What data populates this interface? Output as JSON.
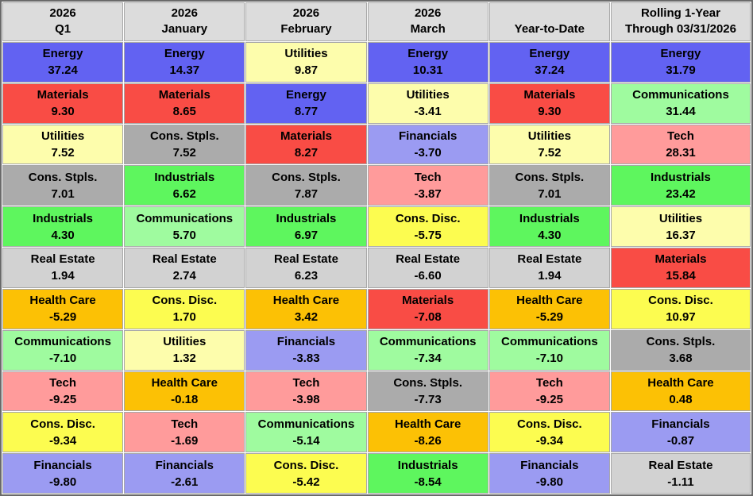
{
  "chart_data": {
    "type": "table",
    "title": "Sector returns quilt table (%), 2026 periods",
    "header_bg": "#dcdcdc",
    "grid_line_color": "#a8a8a8",
    "outer_border_color": "#6a6a6a",
    "sector_colors": {
      "Energy": "#6262f2",
      "Materials": "#f94c45",
      "Utilities": "#fdfdac",
      "Cons. Stpls.": "#ababab",
      "Industrials": "#5ef65e",
      "Real Estate": "#d2d2d2",
      "Health Care": "#fcc105",
      "Communications": "#9ffb9f",
      "Tech": "#ff9b9b",
      "Cons. Disc.": "#fcfc50",
      "Financials": "#9b9bf2"
    },
    "columns": [
      {
        "header_line1": "2026",
        "header_line2": "Q1",
        "cells": [
          {
            "sector": "Energy",
            "value": "37.24"
          },
          {
            "sector": "Materials",
            "value": "9.30"
          },
          {
            "sector": "Utilities",
            "value": "7.52"
          },
          {
            "sector": "Cons. Stpls.",
            "value": "7.01"
          },
          {
            "sector": "Industrials",
            "value": "4.30"
          },
          {
            "sector": "Real Estate",
            "value": "1.94"
          },
          {
            "sector": "Health Care",
            "value": "-5.29"
          },
          {
            "sector": "Communications",
            "value": "-7.10"
          },
          {
            "sector": "Tech",
            "value": "-9.25"
          },
          {
            "sector": "Cons. Disc.",
            "value": "-9.34"
          },
          {
            "sector": "Financials",
            "value": "-9.80"
          }
        ]
      },
      {
        "header_line1": "2026",
        "header_line2": "January",
        "cells": [
          {
            "sector": "Energy",
            "value": "14.37"
          },
          {
            "sector": "Materials",
            "value": "8.65"
          },
          {
            "sector": "Cons. Stpls.",
            "value": "7.52"
          },
          {
            "sector": "Industrials",
            "value": "6.62"
          },
          {
            "sector": "Communications",
            "value": "5.70"
          },
          {
            "sector": "Real Estate",
            "value": "2.74"
          },
          {
            "sector": "Cons. Disc.",
            "value": "1.70"
          },
          {
            "sector": "Utilities",
            "value": "1.32"
          },
          {
            "sector": "Health Care",
            "value": "-0.18"
          },
          {
            "sector": "Tech",
            "value": "-1.69"
          },
          {
            "sector": "Financials",
            "value": "-2.61"
          }
        ]
      },
      {
        "header_line1": "2026",
        "header_line2": "February",
        "cells": [
          {
            "sector": "Utilities",
            "value": "9.87"
          },
          {
            "sector": "Energy",
            "value": "8.77"
          },
          {
            "sector": "Materials",
            "value": "8.27"
          },
          {
            "sector": "Cons. Stpls.",
            "value": "7.87"
          },
          {
            "sector": "Industrials",
            "value": "6.97"
          },
          {
            "sector": "Real Estate",
            "value": "6.23"
          },
          {
            "sector": "Health Care",
            "value": "3.42"
          },
          {
            "sector": "Financials",
            "value": "-3.83"
          },
          {
            "sector": "Tech",
            "value": "-3.98"
          },
          {
            "sector": "Communications",
            "value": "-5.14"
          },
          {
            "sector": "Cons. Disc.",
            "value": "-5.42"
          }
        ]
      },
      {
        "header_line1": "2026",
        "header_line2": "March",
        "cells": [
          {
            "sector": "Energy",
            "value": "10.31"
          },
          {
            "sector": "Utilities",
            "value": "-3.41"
          },
          {
            "sector": "Financials",
            "value": "-3.70"
          },
          {
            "sector": "Tech",
            "value": "-3.87"
          },
          {
            "sector": "Cons. Disc.",
            "value": "-5.75"
          },
          {
            "sector": "Real Estate",
            "value": "-6.60"
          },
          {
            "sector": "Materials",
            "value": "-7.08"
          },
          {
            "sector": "Communications",
            "value": "-7.34"
          },
          {
            "sector": "Cons. Stpls.",
            "value": "-7.73"
          },
          {
            "sector": "Health Care",
            "value": "-8.26"
          },
          {
            "sector": "Industrials",
            "value": "-8.54"
          }
        ]
      },
      {
        "header_line1": "",
        "header_line2": "Year-to-Date",
        "cells": [
          {
            "sector": "Energy",
            "value": "37.24"
          },
          {
            "sector": "Materials",
            "value": "9.30"
          },
          {
            "sector": "Utilities",
            "value": "7.52"
          },
          {
            "sector": "Cons. Stpls.",
            "value": "7.01"
          },
          {
            "sector": "Industrials",
            "value": "4.30"
          },
          {
            "sector": "Real Estate",
            "value": "1.94"
          },
          {
            "sector": "Health Care",
            "value": "-5.29"
          },
          {
            "sector": "Communications",
            "value": "-7.10"
          },
          {
            "sector": "Tech",
            "value": "-9.25"
          },
          {
            "sector": "Cons. Disc.",
            "value": "-9.34"
          },
          {
            "sector": "Financials",
            "value": "-9.80"
          }
        ]
      },
      {
        "header_line1": "Rolling 1-Year",
        "header_line2": "Through 03/31/2026",
        "cells": [
          {
            "sector": "Energy",
            "value": "31.79"
          },
          {
            "sector": "Communications",
            "value": "31.44"
          },
          {
            "sector": "Tech",
            "value": "28.31"
          },
          {
            "sector": "Industrials",
            "value": "23.42"
          },
          {
            "sector": "Utilities",
            "value": "16.37"
          },
          {
            "sector": "Materials",
            "value": "15.84"
          },
          {
            "sector": "Cons. Disc.",
            "value": "10.97"
          },
          {
            "sector": "Cons. Stpls.",
            "value": "3.68"
          },
          {
            "sector": "Health Care",
            "value": "0.48"
          },
          {
            "sector": "Financials",
            "value": "-0.87"
          },
          {
            "sector": "Real Estate",
            "value": "-1.11"
          }
        ]
      }
    ]
  }
}
